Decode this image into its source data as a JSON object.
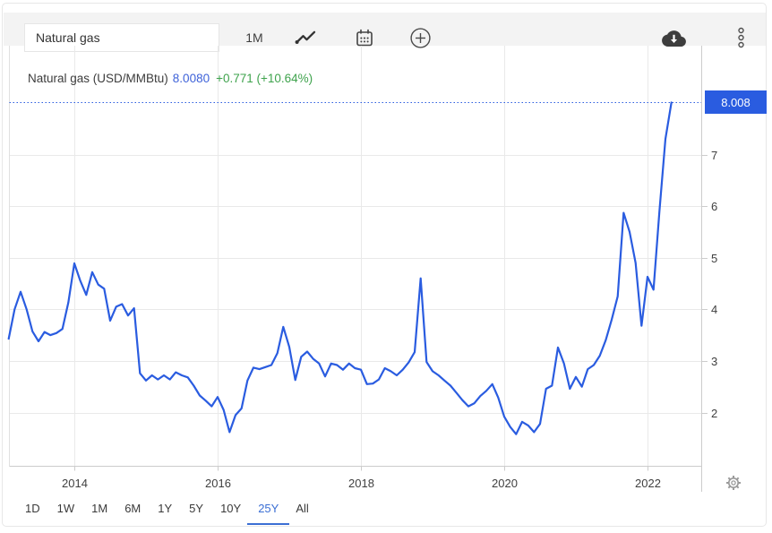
{
  "toolbar": {
    "search_value": "Natural gas",
    "interval_label": "1M",
    "buttons": [
      {
        "name": "chart-type",
        "icon": "line-chart-icon"
      },
      {
        "name": "calendar",
        "icon": "calendar-icon"
      },
      {
        "name": "add-series",
        "icon": "add-circle-icon"
      },
      {
        "name": "download",
        "icon": "download-cloud-icon"
      },
      {
        "name": "more-menu",
        "icon": "more-vertical-icon"
      }
    ]
  },
  "header": {
    "title": "Natural gas (USD/MMBtu)",
    "price": "8.0080",
    "change": "+0.771 (+10.64%)"
  },
  "price_tag": {
    "label": "8.008"
  },
  "footer": {
    "ranges": [
      "1D",
      "1W",
      "1M",
      "6M",
      "1Y",
      "5Y",
      "10Y",
      "25Y",
      "All"
    ],
    "selected_range": "25Y",
    "settings_icon": "gear-icon"
  },
  "colors": {
    "accent_blue": "#2a5ce0",
    "price_text_blue": "#3e62d9",
    "positive_green": "#3fa34d",
    "selected_range_blue": "#3b6fd4",
    "grid": "#e9e9e9",
    "axis": "#cccccc",
    "plot_left_edge": "#e0e0e0",
    "tick_text": "#3f3f3f",
    "toolbar_bg": "#f3f3f3",
    "price_tag_bg": "#2a5ce0"
  },
  "chart_data": {
    "type": "line",
    "title": "Natural gas (USD/MMBtu)",
    "series_name": "Natural gas",
    "unit": "USD/MMBtu",
    "x_interval": "monthly",
    "x_start": "2013-02",
    "values": [
      3.43,
      4.0,
      4.34,
      4.0,
      3.57,
      3.38,
      3.56,
      3.5,
      3.54,
      3.62,
      4.13,
      4.89,
      4.55,
      4.28,
      4.72,
      4.48,
      4.4,
      3.78,
      4.05,
      4.1,
      3.88,
      4.02,
      2.76,
      2.62,
      2.72,
      2.64,
      2.72,
      2.64,
      2.78,
      2.72,
      2.68,
      2.52,
      2.33,
      2.23,
      2.12,
      2.3,
      2.05,
      1.62,
      1.95,
      2.08,
      2.62,
      2.87,
      2.84,
      2.88,
      2.92,
      3.15,
      3.66,
      3.27,
      2.63,
      3.08,
      3.18,
      3.04,
      2.95,
      2.7,
      2.95,
      2.92,
      2.83,
      2.95,
      2.86,
      2.83,
      2.55,
      2.56,
      2.64,
      2.86,
      2.8,
      2.72,
      2.83,
      2.97,
      3.17,
      4.6,
      2.98,
      2.8,
      2.72,
      2.62,
      2.52,
      2.38,
      2.24,
      2.12,
      2.18,
      2.32,
      2.42,
      2.55,
      2.29,
      1.92,
      1.72,
      1.58,
      1.82,
      1.75,
      1.62,
      1.78,
      2.46,
      2.52,
      3.26,
      2.95,
      2.46,
      2.69,
      2.5,
      2.84,
      2.92,
      3.1,
      3.4,
      3.8,
      4.25,
      5.87,
      5.5,
      4.9,
      3.68,
      4.63,
      4.38,
      5.9,
      7.3,
      8.008
    ],
    "last_price": 8.008,
    "change_abs": 0.771,
    "change_pct": 10.64,
    "yticks": [
      2,
      3,
      4,
      5,
      6,
      7
    ],
    "xticks": [
      2014,
      2016,
      2018,
      2020,
      2022
    ],
    "ylim": [
      1.0,
      9.1
    ],
    "xlim": [
      "2013-02",
      "2022-09"
    ],
    "grid": true,
    "current_price_line": true,
    "legend_position": "none"
  }
}
